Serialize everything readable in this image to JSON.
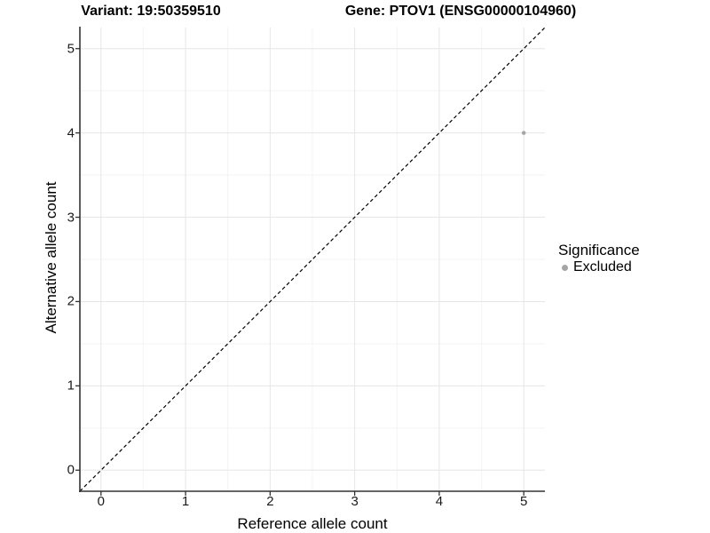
{
  "titles": {
    "variant": "Variant: 19:50359510",
    "gene": "Gene: PTOV1 (ENSG00000104960)"
  },
  "axes": {
    "x_label": "Reference allele count",
    "y_label": "Alternative allele count"
  },
  "legend": {
    "title": "Significance",
    "entries": [
      {
        "label": "Excluded",
        "color": "#a6a6a6"
      }
    ]
  },
  "chart_data": {
    "type": "scatter",
    "title": "Variant: 19:50359510 / Gene: PTOV1 (ENSG00000104960)",
    "xlabel": "Reference allele count",
    "ylabel": "Alternative allele count",
    "xlim": [
      -0.25,
      5.25
    ],
    "ylim": [
      -0.25,
      5.25
    ],
    "x_ticks": [
      0,
      1,
      2,
      3,
      4,
      5
    ],
    "y_ticks": [
      0,
      1,
      2,
      3,
      4,
      5
    ],
    "grid": "major+minor",
    "legend_position": "right",
    "points": [
      {
        "x": 5,
        "y": 4,
        "series": "Excluded",
        "color": "#a6a6a6"
      }
    ],
    "reference_line": {
      "slope": 1,
      "intercept": 0,
      "style": "dashed",
      "color": "#000000"
    },
    "style": {
      "grid_major_color": "#e6e6e6",
      "grid_minor_color": "#f3f3f3",
      "axis_color": "#333333",
      "point_radius": 2.3
    }
  }
}
